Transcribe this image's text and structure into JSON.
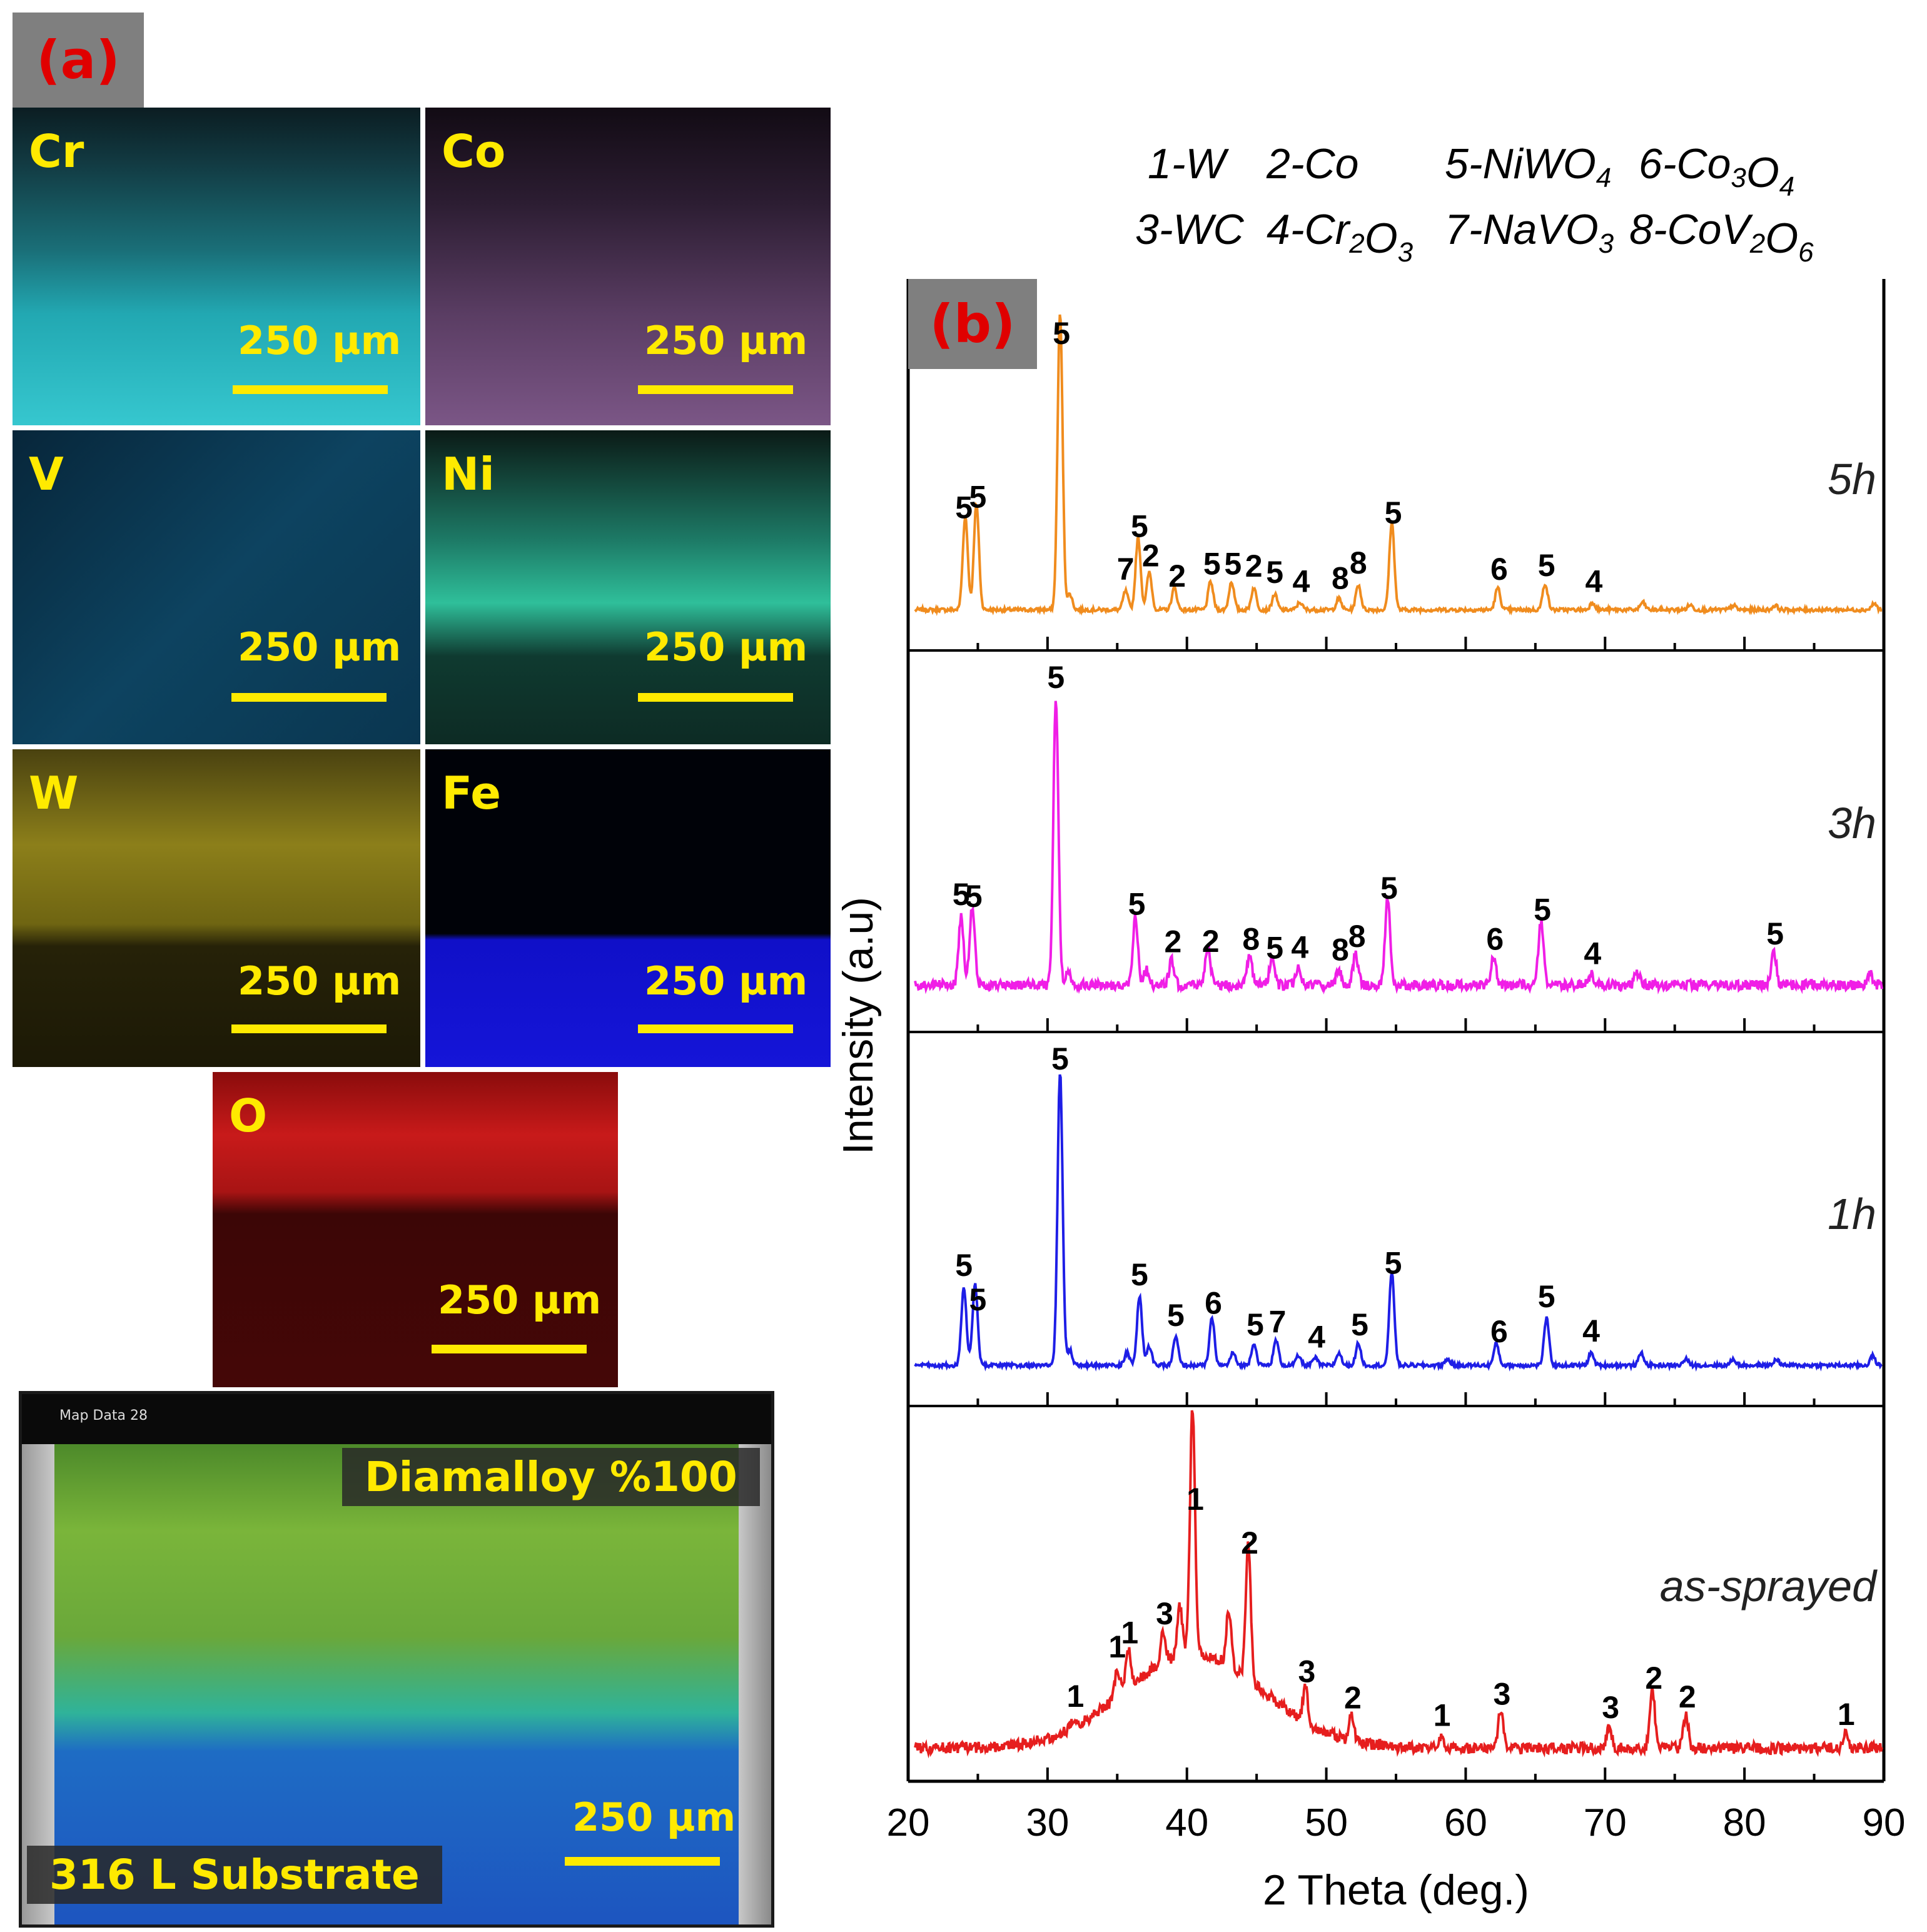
{
  "panel_a": {
    "label": "(a)",
    "maps": [
      {
        "element": "Cr",
        "scale": "250 µm"
      },
      {
        "element": "Co",
        "scale": "250 µm"
      },
      {
        "element": "V",
        "scale": "250 µm"
      },
      {
        "element": "Ni",
        "scale": "250 µm"
      },
      {
        "element": "W",
        "scale": "250 µm"
      },
      {
        "element": "Fe",
        "scale": "250 µm"
      },
      {
        "element": "O",
        "scale": "250 µm"
      }
    ],
    "composite": {
      "caption": "Map Data 28",
      "coating": "Diamalloy %100",
      "substrate": "316 L Substrate",
      "scale": "250 µm"
    }
  },
  "panel_b": {
    "label": "(b)"
  },
  "chart_data": {
    "type": "line",
    "title": "",
    "xlabel": "2 Theta (deg.)",
    "ylabel": "Intensity (a.u)",
    "xlim": [
      20,
      90
    ],
    "xticks": [
      "20",
      "30",
      "40",
      "50",
      "60",
      "70",
      "80",
      "90"
    ],
    "legend_lines": [
      [
        "1-W",
        "2-Co",
        "5-NiWO4",
        "6-Co3O4"
      ],
      [
        "3-WC",
        "4-Cr2O3",
        "7-NaVO3",
        "8-CoV2O6"
      ]
    ],
    "series": [
      {
        "name": "5h",
        "color": "#f08c1e",
        "peaks": [
          [
            24.1,
            150
          ],
          [
            24.9,
            170
          ],
          [
            30.9,
            475
          ],
          [
            31.6,
            25
          ],
          [
            35.6,
            30
          ],
          [
            36.5,
            115
          ],
          [
            37.3,
            60
          ],
          [
            39.1,
            35
          ],
          [
            41.7,
            45
          ],
          [
            43.2,
            45
          ],
          [
            44.8,
            35
          ],
          [
            46.3,
            25
          ],
          [
            48.1,
            12
          ],
          [
            50.9,
            18
          ],
          [
            52.3,
            40
          ],
          [
            54.7,
            140
          ],
          [
            62.3,
            35
          ],
          [
            65.7,
            42
          ],
          [
            69.1,
            12
          ],
          [
            72.7,
            12
          ],
          [
            76.1,
            8
          ],
          [
            79.2,
            7
          ],
          [
            82.2,
            7
          ],
          [
            89.3,
            10
          ]
        ],
        "labels": [
          [
            24.0,
            "5"
          ],
          [
            25.0,
            "5"
          ],
          [
            31.0,
            "5"
          ],
          [
            35.6,
            "7"
          ],
          [
            36.6,
            "5"
          ],
          [
            37.4,
            "2"
          ],
          [
            39.3,
            "2"
          ],
          [
            41.8,
            "5"
          ],
          [
            43.3,
            "5"
          ],
          [
            44.8,
            "2"
          ],
          [
            46.3,
            "5"
          ],
          [
            48.2,
            "4"
          ],
          [
            51.0,
            "8"
          ],
          [
            52.3,
            "8"
          ],
          [
            54.8,
            "5"
          ],
          [
            62.4,
            "6"
          ],
          [
            65.8,
            "5"
          ],
          [
            69.2,
            "4"
          ]
        ]
      },
      {
        "name": "3h",
        "color": "#f01ee6",
        "peaks": [
          [
            23.8,
            110
          ],
          [
            24.6,
            125
          ],
          [
            30.6,
            460
          ],
          [
            31.5,
            25
          ],
          [
            36.3,
            110
          ],
          [
            37.1,
            25
          ],
          [
            38.9,
            40
          ],
          [
            41.5,
            65
          ],
          [
            44.5,
            45
          ],
          [
            46.1,
            45
          ],
          [
            48.0,
            30
          ],
          [
            50.9,
            25
          ],
          [
            52.1,
            50
          ],
          [
            54.4,
            140
          ],
          [
            62.0,
            45
          ],
          [
            65.4,
            100
          ],
          [
            69.0,
            18
          ],
          [
            72.3,
            20
          ],
          [
            82.1,
            55
          ],
          [
            89.0,
            20
          ]
        ],
        "labels": [
          [
            23.8,
            "5"
          ],
          [
            24.7,
            "5"
          ],
          [
            30.6,
            "5"
          ],
          [
            36.4,
            "5"
          ],
          [
            39.0,
            "2"
          ],
          [
            41.7,
            "2"
          ],
          [
            44.6,
            "8"
          ],
          [
            46.3,
            "5"
          ],
          [
            48.1,
            "4"
          ],
          [
            51.0,
            "8"
          ],
          [
            52.2,
            "8"
          ],
          [
            54.5,
            "5"
          ],
          [
            62.1,
            "6"
          ],
          [
            65.5,
            "5"
          ],
          [
            69.1,
            "4"
          ],
          [
            82.2,
            "5"
          ]
        ]
      },
      {
        "name": "1h",
        "color": "#1e1ee6",
        "peaks": [
          [
            24.0,
            125
          ],
          [
            24.8,
            130
          ],
          [
            30.9,
            470
          ],
          [
            31.6,
            25
          ],
          [
            35.7,
            20
          ],
          [
            36.6,
            110
          ],
          [
            37.3,
            30
          ],
          [
            39.2,
            45
          ],
          [
            41.8,
            75
          ],
          [
            43.3,
            20
          ],
          [
            44.8,
            35
          ],
          [
            46.4,
            40
          ],
          [
            48.0,
            15
          ],
          [
            49.2,
            12
          ],
          [
            50.9,
            20
          ],
          [
            52.3,
            35
          ],
          [
            54.7,
            150
          ],
          [
            58.7,
            10
          ],
          [
            62.2,
            35
          ],
          [
            65.8,
            75
          ],
          [
            69.0,
            20
          ],
          [
            72.6,
            20
          ],
          [
            75.8,
            10
          ],
          [
            79.2,
            10
          ],
          [
            82.3,
            10
          ],
          [
            89.2,
            15
          ]
        ],
        "labels": [
          [
            24.0,
            "5"
          ],
          [
            25.0,
            "5"
          ],
          [
            30.9,
            "5"
          ],
          [
            36.6,
            "5"
          ],
          [
            39.2,
            "5"
          ],
          [
            41.9,
            "6"
          ],
          [
            44.9,
            "5"
          ],
          [
            46.5,
            "7"
          ],
          [
            49.3,
            "4"
          ],
          [
            52.4,
            "5"
          ],
          [
            54.8,
            "5"
          ],
          [
            62.4,
            "6"
          ],
          [
            65.8,
            "5"
          ],
          [
            69.0,
            "4"
          ]
        ]
      },
      {
        "name": "as-sprayed",
        "color": "#e61e1e",
        "peaks": [
          [
            31.9,
            15
          ],
          [
            35.0,
            45
          ],
          [
            35.8,
            60
          ],
          [
            38.3,
            50
          ],
          [
            39.5,
            80
          ],
          [
            40.4,
            395
          ],
          [
            43.0,
            90
          ],
          [
            44.4,
            215
          ],
          [
            48.5,
            55
          ],
          [
            51.8,
            40
          ],
          [
            58.2,
            20
          ],
          [
            62.5,
            60
          ],
          [
            70.3,
            35
          ],
          [
            73.4,
            90
          ],
          [
            75.8,
            55
          ],
          [
            87.2,
            22
          ]
        ],
        "broad": [
          [
            40.5,
            150,
            5.0
          ]
        ],
        "labels": [
          [
            32.0,
            "1"
          ],
          [
            35.0,
            "1"
          ],
          [
            35.9,
            "1"
          ],
          [
            38.4,
            "3"
          ],
          [
            40.6,
            "1"
          ],
          [
            44.5,
            "2"
          ],
          [
            48.6,
            "3"
          ],
          [
            51.9,
            "2"
          ],
          [
            58.3,
            "1"
          ],
          [
            62.6,
            "3"
          ],
          [
            70.4,
            "3"
          ],
          [
            73.5,
            "2"
          ],
          [
            75.9,
            "2"
          ],
          [
            87.3,
            "1"
          ]
        ]
      }
    ]
  }
}
